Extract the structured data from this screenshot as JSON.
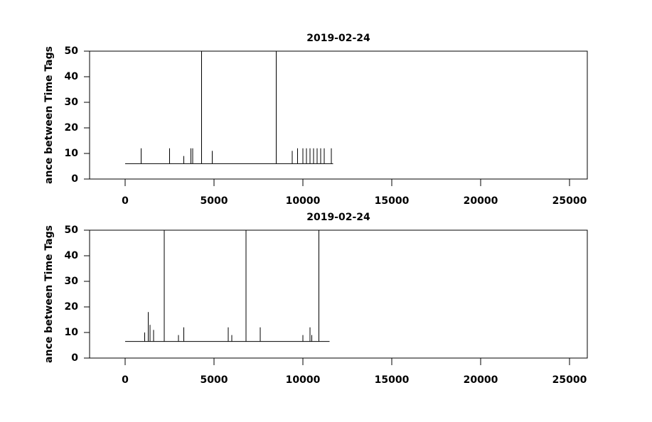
{
  "chart_data": [
    {
      "type": "line",
      "title": "2019-02-24",
      "y_label": "ance between Time Tags",
      "color": "#000000",
      "x": [
        0,
        900,
        900,
        900,
        2500,
        2500,
        2500,
        3300,
        3300,
        3300,
        3700,
        3700,
        3700,
        3800,
        3800,
        3800,
        4300,
        4300,
        4300,
        4900,
        4900,
        4900,
        8500,
        8500,
        8500,
        9400,
        9400,
        9400,
        9700,
        9700,
        9700,
        10000,
        10000,
        10000,
        10200,
        10200,
        10200,
        10400,
        10400,
        10400,
        10600,
        10600,
        10600,
        10800,
        10800,
        10800,
        11000,
        11000,
        11000,
        11200,
        11200,
        11200,
        11600,
        11600,
        11600,
        11700
      ],
      "values": [
        6,
        6,
        12,
        6,
        6,
        12,
        6,
        6,
        9,
        6,
        6,
        12,
        6,
        6,
        12,
        6,
        6,
        50,
        6,
        6,
        11,
        6,
        6,
        50,
        6,
        6,
        11,
        6,
        6,
        12,
        6,
        6,
        12,
        6,
        6,
        12,
        6,
        6,
        12,
        6,
        6,
        12,
        6,
        6,
        12,
        6,
        6,
        12,
        6,
        6,
        12,
        6,
        6,
        12,
        6,
        6
      ],
      "xlim": [
        -2000,
        26000
      ],
      "ylim": [
        0,
        50
      ],
      "xticks": [
        0,
        5000,
        10000,
        15000,
        20000,
        25000
      ],
      "yticks": [
        0,
        10,
        20,
        30,
        40,
        50
      ]
    },
    {
      "type": "line",
      "title": "2019-02-24",
      "y_label": "ance between Time Tags",
      "color": "#000000",
      "x": [
        0,
        1100,
        1100,
        1100,
        1300,
        1300,
        1300,
        1400,
        1400,
        1400,
        1600,
        1600,
        1600,
        2200,
        2200,
        2200,
        3000,
        3000,
        3000,
        3300,
        3300,
        3300,
        5800,
        5800,
        5800,
        6000,
        6000,
        6000,
        6800,
        6800,
        6800,
        7600,
        7600,
        7600,
        10000,
        10000,
        10000,
        10400,
        10400,
        10400,
        10500,
        10500,
        10500,
        10900,
        10900,
        10900,
        11500
      ],
      "values": [
        6.5,
        6.5,
        10,
        6.5,
        6.5,
        18,
        6.5,
        6.5,
        13,
        6.5,
        6.5,
        11,
        6.5,
        6.5,
        50,
        6.5,
        6.5,
        9,
        6.5,
        6.5,
        12,
        6.5,
        6.5,
        12,
        6.5,
        6.5,
        9,
        6.5,
        6.5,
        50,
        6.5,
        6.5,
        12,
        6.5,
        6.5,
        9,
        6.5,
        6.5,
        12,
        6.5,
        6.5,
        9,
        6.5,
        6.5,
        50,
        6.5,
        6.5
      ],
      "xlim": [
        -2000,
        26000
      ],
      "ylim": [
        0,
        50
      ],
      "xticks": [
        0,
        5000,
        10000,
        15000,
        20000,
        25000
      ],
      "yticks": [
        0,
        10,
        20,
        30,
        40,
        50
      ]
    }
  ]
}
